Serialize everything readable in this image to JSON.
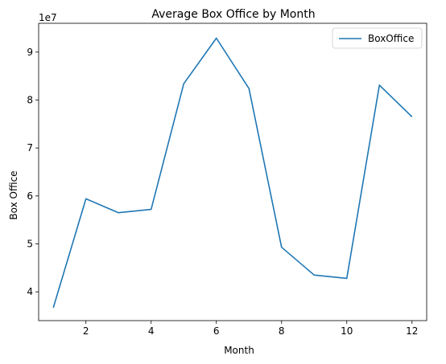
{
  "chart_data": {
    "type": "line",
    "title": "Average Box Office by Month",
    "xlabel": "Month",
    "ylabel": "Box Office",
    "y_offset_label": "1e7",
    "xlim": [
      0.55,
      12.45
    ],
    "ylim": [
      3.4,
      9.6
    ],
    "x_ticks": [
      2,
      4,
      6,
      8,
      10,
      12
    ],
    "y_ticks": [
      4,
      5,
      6,
      7,
      8,
      9
    ],
    "grid": false,
    "legend_position": "upper right",
    "series": [
      {
        "name": "BoxOffice",
        "color": "#1f77b4",
        "x": [
          1,
          2,
          3,
          4,
          5,
          6,
          7,
          8,
          9,
          10,
          11,
          12
        ],
        "y": [
          3.67,
          5.94,
          5.65,
          5.72,
          8.34,
          9.29,
          8.24,
          4.93,
          4.35,
          4.28,
          8.31,
          7.65
        ]
      }
    ]
  }
}
